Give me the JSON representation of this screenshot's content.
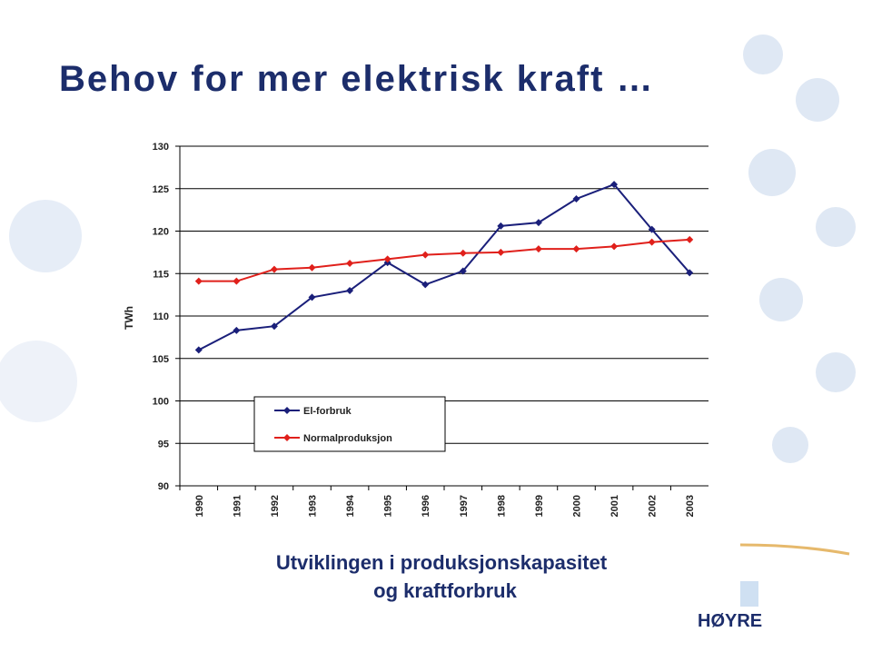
{
  "slide_title": "Behov for mer elektrisk kraft …",
  "logo": "HØYRE",
  "chart_data": {
    "type": "line",
    "caption": [
      "Utviklingen i produksjonskapasitet",
      "og kraftforbruk"
    ],
    "y_label": "TWh",
    "categories": [
      "1990",
      "1991",
      "1992",
      "1993",
      "1994",
      "1995",
      "1996",
      "1997",
      "1998",
      "1999",
      "2000",
      "2001",
      "2002",
      "2003"
    ],
    "series": [
      {
        "name": "El-forbruk",
        "color": "#1a1f7a",
        "values": [
          106,
          108.3,
          108.8,
          112.2,
          113,
          116.3,
          113.7,
          115.3,
          120.6,
          121,
          123.8,
          125.5,
          120.2,
          115.1
        ]
      },
      {
        "name": "Normalproduksjon",
        "color": "#e0201b",
        "values": [
          114.1,
          114.1,
          115.5,
          115.7,
          116.2,
          116.7,
          117.2,
          117.4,
          117.5,
          117.9,
          117.9,
          118.2,
          118.7,
          119
        ]
      }
    ],
    "ylim": [
      90,
      130
    ],
    "yticks": [
      90,
      95,
      100,
      105,
      110,
      115,
      120,
      125,
      130
    ],
    "grid": true
  }
}
